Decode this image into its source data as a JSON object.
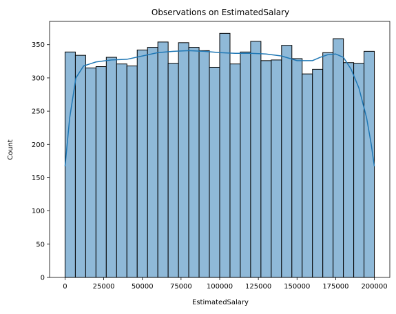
{
  "chart_data": {
    "type": "histogram",
    "title": "Observations on EstimatedSalary",
    "xlabel": "EstimatedSalary",
    "ylabel": "Count",
    "xlim": [
      -10000,
      210000
    ],
    "ylim": [
      0,
      385
    ],
    "x_ticks": [
      0,
      25000,
      50000,
      75000,
      100000,
      125000,
      150000,
      175000,
      200000
    ],
    "y_ticks": [
      0,
      50,
      100,
      150,
      200,
      250,
      300,
      350
    ],
    "bin_start": 0,
    "bin_width": 6666.67,
    "counts": [
      339,
      334,
      315,
      317,
      331,
      321,
      318,
      342,
      346,
      354,
      322,
      353,
      346,
      341,
      316,
      367,
      321,
      339,
      355,
      326,
      327,
      349,
      329,
      306,
      313,
      338,
      359,
      323,
      322,
      340
    ],
    "kde": {
      "x": [
        0,
        3000,
        7000,
        12000,
        20000,
        30000,
        40000,
        50000,
        60000,
        70000,
        80000,
        90000,
        100000,
        110000,
        120000,
        130000,
        140000,
        150000,
        160000,
        165000,
        170000,
        175000,
        180000,
        185000,
        190000,
        195000,
        198000,
        200000
      ],
      "y": [
        167,
        240,
        300,
        318,
        324,
        327,
        328,
        333,
        338,
        340,
        341,
        340,
        338,
        337,
        337,
        336,
        333,
        326,
        326,
        331,
        335,
        336,
        331,
        313,
        285,
        240,
        200,
        167
      ]
    },
    "colors": {
      "bar_fill": "#8fb9d8",
      "bar_edge": "#000000",
      "kde_line": "#1f77b4"
    },
    "grid": false,
    "legend": "none"
  }
}
